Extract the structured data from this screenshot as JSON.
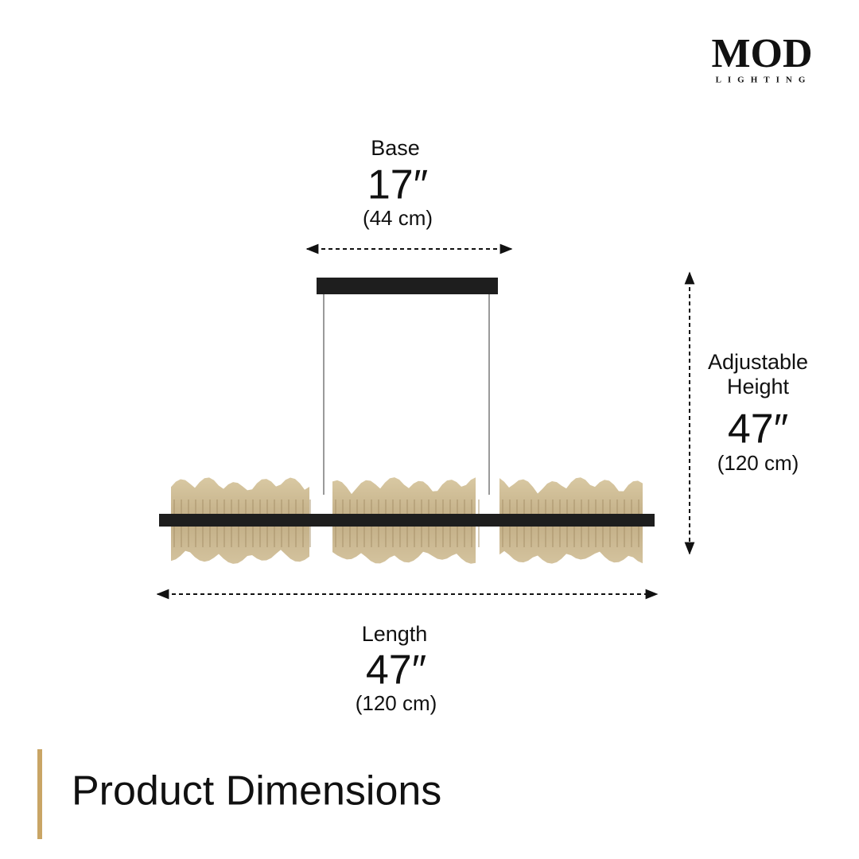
{
  "brand": {
    "name": "MOD",
    "tagline": "LIGHTING"
  },
  "dimensions": {
    "base": {
      "label": "Base",
      "inches": "17″",
      "cm": "(44 cm)"
    },
    "height": {
      "label": [
        "Adjustable",
        "Height"
      ],
      "inches": "47″",
      "cm": "(120 cm)"
    },
    "length": {
      "label": "Length",
      "inches": "47″",
      "cm": "(120 cm)"
    }
  },
  "footer": {
    "title": "Product Dimensions"
  }
}
